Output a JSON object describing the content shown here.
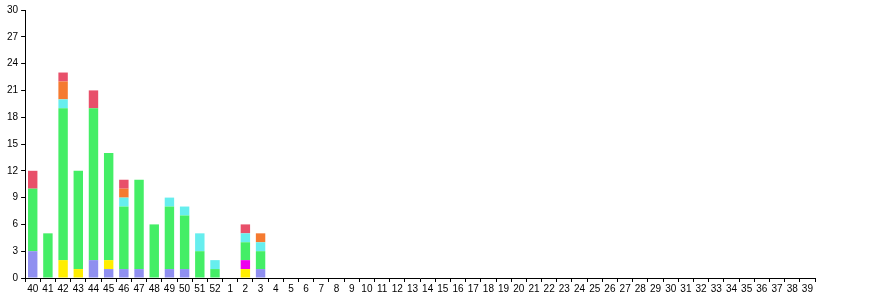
{
  "chart_data": {
    "type": "bar",
    "stacked": true,
    "grid": false,
    "categories": [
      "40",
      "41",
      "42",
      "43",
      "44",
      "45",
      "46",
      "47",
      "48",
      "49",
      "50",
      "51",
      "52",
      "1",
      "2",
      "3",
      "4",
      "5",
      "6",
      "7",
      "8",
      "9",
      "10",
      "11",
      "12",
      "13",
      "14",
      "15",
      "16",
      "17",
      "18",
      "19",
      "20",
      "21",
      "22",
      "23",
      "24",
      "25",
      "26",
      "27",
      "28",
      "29",
      "30",
      "31",
      "32",
      "33",
      "34",
      "35",
      "36",
      "37",
      "38",
      "39"
    ],
    "ylim": [
      0,
      30
    ],
    "yticks": [
      0,
      3,
      6,
      9,
      12,
      15,
      18,
      21,
      24,
      27,
      30
    ],
    "series": [
      {
        "color": "#9090f0",
        "values": [
          3,
          0,
          0,
          0,
          2,
          1,
          1,
          1,
          0,
          1,
          1,
          0,
          0,
          0,
          0,
          1,
          0,
          0,
          0,
          0,
          0,
          0,
          0,
          0,
          0,
          0,
          0,
          0,
          0,
          0,
          0,
          0,
          0,
          0,
          0,
          0,
          0,
          0,
          0,
          0,
          0,
          0,
          0,
          0,
          0,
          0,
          0,
          0,
          0,
          0,
          0,
          0
        ]
      },
      {
        "color": "#ffee00",
        "values": [
          0,
          0,
          2,
          1,
          0,
          1,
          0,
          0,
          0,
          0,
          0,
          0,
          0,
          0,
          1,
          0,
          0,
          0,
          0,
          0,
          0,
          0,
          0,
          0,
          0,
          0,
          0,
          0,
          0,
          0,
          0,
          0,
          0,
          0,
          0,
          0,
          0,
          0,
          0,
          0,
          0,
          0,
          0,
          0,
          0,
          0,
          0,
          0,
          0,
          0,
          0,
          0
        ]
      },
      {
        "color": "#ee00ee",
        "values": [
          0,
          0,
          0,
          0,
          0,
          0,
          0,
          0,
          0,
          0,
          0,
          0,
          0,
          0,
          1,
          0,
          0,
          0,
          0,
          0,
          0,
          0,
          0,
          0,
          0,
          0,
          0,
          0,
          0,
          0,
          0,
          0,
          0,
          0,
          0,
          0,
          0,
          0,
          0,
          0,
          0,
          0,
          0,
          0,
          0,
          0,
          0,
          0,
          0,
          0,
          0,
          0
        ]
      },
      {
        "color": "#44ee66",
        "values": [
          7,
          5,
          17,
          11,
          17,
          12,
          7,
          10,
          6,
          7,
          6,
          3,
          1,
          0,
          2,
          2,
          0,
          0,
          0,
          0,
          0,
          0,
          0,
          0,
          0,
          0,
          0,
          0,
          0,
          0,
          0,
          0,
          0,
          0,
          0,
          0,
          0,
          0,
          0,
          0,
          0,
          0,
          0,
          0,
          0,
          0,
          0,
          0,
          0,
          0,
          0,
          0
        ]
      },
      {
        "color": "#66eeee",
        "values": [
          0,
          0,
          1,
          0,
          0,
          0,
          1,
          0,
          0,
          1,
          1,
          2,
          1,
          0,
          1,
          1,
          0,
          0,
          0,
          0,
          0,
          0,
          0,
          0,
          0,
          0,
          0,
          0,
          0,
          0,
          0,
          0,
          0,
          0,
          0,
          0,
          0,
          0,
          0,
          0,
          0,
          0,
          0,
          0,
          0,
          0,
          0,
          0,
          0,
          0,
          0,
          0
        ]
      },
      {
        "color": "#f57a30",
        "values": [
          0,
          0,
          2,
          0,
          0,
          0,
          1,
          0,
          0,
          0,
          0,
          0,
          0,
          0,
          0,
          1,
          0,
          0,
          0,
          0,
          0,
          0,
          0,
          0,
          0,
          0,
          0,
          0,
          0,
          0,
          0,
          0,
          0,
          0,
          0,
          0,
          0,
          0,
          0,
          0,
          0,
          0,
          0,
          0,
          0,
          0,
          0,
          0,
          0,
          0,
          0,
          0
        ]
      },
      {
        "color": "#e8506a",
        "values": [
          2,
          0,
          1,
          0,
          2,
          0,
          1,
          0,
          0,
          0,
          0,
          0,
          0,
          0,
          1,
          0,
          0,
          0,
          0,
          0,
          0,
          0,
          0,
          0,
          0,
          0,
          0,
          0,
          0,
          0,
          0,
          0,
          0,
          0,
          0,
          0,
          0,
          0,
          0,
          0,
          0,
          0,
          0,
          0,
          0,
          0,
          0,
          0,
          0,
          0,
          0,
          0
        ]
      }
    ]
  }
}
